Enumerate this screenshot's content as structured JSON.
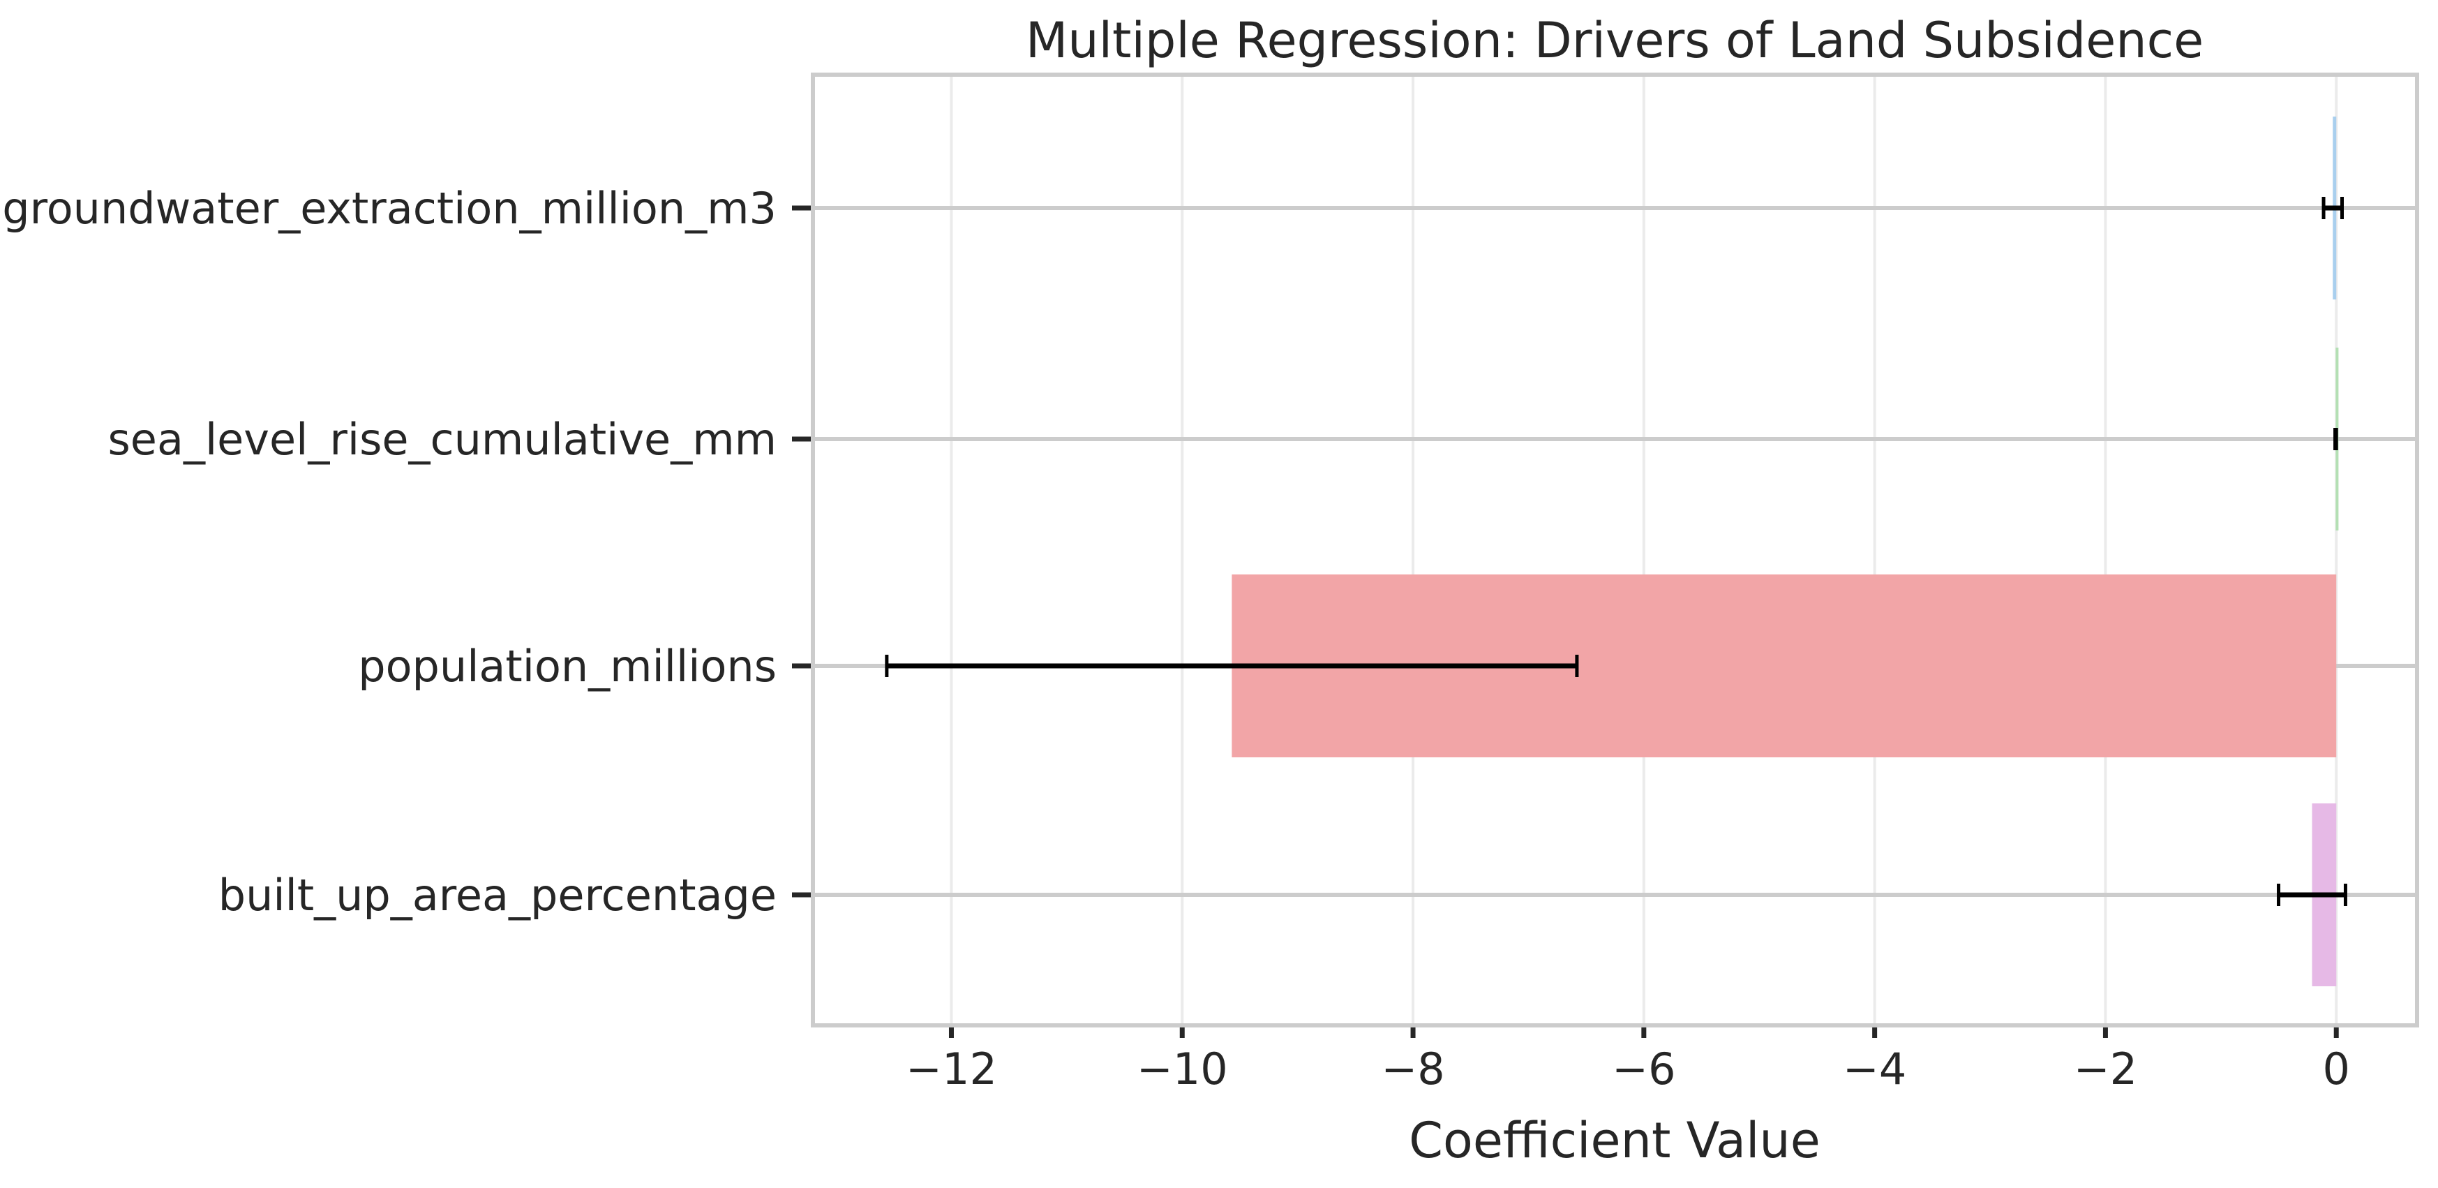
{
  "chart_data": {
    "type": "bar",
    "orientation": "horizontal",
    "title": "Multiple Regression: Drivers of Land Subsidence",
    "xlabel": "Coefficient Value",
    "ylabel": "",
    "xlim": [
      -13.2,
      0.7
    ],
    "xticks": [
      -12,
      -10,
      -8,
      -6,
      -4,
      -2,
      0
    ],
    "xtick_labels": [
      "−12",
      "−10",
      "−8",
      "−6",
      "−4",
      "−2",
      "0"
    ],
    "grid": true,
    "categories": [
      "groundwater_extraction_million_m3",
      "sea_level_rise_cumulative_mm",
      "population_millions",
      "built_up_area_percentage"
    ],
    "values": [
      -0.03,
      -0.005,
      -9.57,
      -0.21
    ],
    "errors": [
      0.08,
      0.005,
      2.99,
      0.29
    ],
    "colors": [
      "#a9cfee",
      "#b4e0b4",
      "#f2a5a7",
      "#e6b9e6"
    ]
  }
}
